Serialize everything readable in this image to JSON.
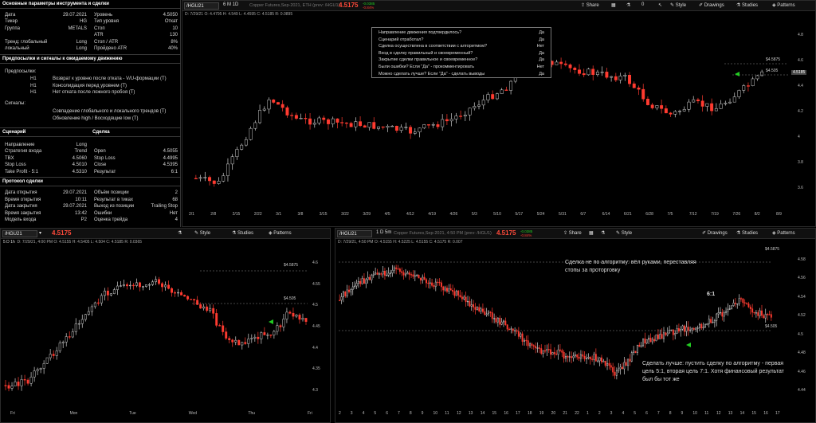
{
  "left_panel": {
    "params_title": "Основные параметры инструмента и сделки",
    "params": [
      [
        "Дата",
        "29.07.2021",
        "Уровень",
        "4.5050"
      ],
      [
        "Тикер",
        "HG",
        "Тип уровня",
        "Откат"
      ],
      [
        "Группа",
        "METALS",
        "Стоп",
        "10"
      ],
      [
        "",
        "",
        "ATR",
        "130"
      ],
      [
        "Тренд: глобальный",
        "Long",
        "Стоп / ATR",
        "8%"
      ],
      [
        "локальный",
        "Long",
        "Пройдено ATR",
        "40%"
      ]
    ],
    "signals_title": "Предпосылки и сигналы к ожидаемому движению",
    "prereq_label": "Предпосылки:",
    "prereq": [
      [
        "H1",
        "Возврат к уровню после отката - V/U-формации (T)"
      ],
      [
        "H1",
        "Консолидация перед уровнем (T)"
      ],
      [
        "H1",
        "Нет отката после ложного пробоя (T)"
      ]
    ],
    "signals_label": "Сигналы:",
    "signals": [
      "Совпадение глобального и локального трендов (T)",
      "Обновление high / Восходящие low (T)"
    ],
    "scenario_title": "Сценарий",
    "trade_title": "Сделка",
    "scenario": [
      [
        "Направление",
        "Long",
        "",
        ""
      ],
      [
        "Стратегия входа",
        "Trend",
        "Open",
        "4.5055"
      ],
      [
        "TBX",
        "4.5060",
        "Stop Loss",
        "4.4995"
      ],
      [
        "Stop Loss",
        "4.5010",
        "Close",
        "4.5395"
      ],
      [
        "Take Profit - 5:1",
        "4.5310",
        "Результат",
        "6:1"
      ]
    ],
    "protocol_title": "Протокол сделки",
    "protocol": [
      [
        "Дата открытия",
        "29.07.2021",
        "Объём позиции",
        "2"
      ],
      [
        "Время открытия",
        "10:11",
        "Результат в тиках",
        "68"
      ],
      [
        "Дата закрытия",
        "29.07.2021",
        "Выход из позиции",
        "Trailing Stop"
      ],
      [
        "Время закрытия",
        "13:42",
        "Ошибки",
        "Нет"
      ],
      [
        "Модель входа",
        "P2",
        "Оценка трейда",
        "4"
      ]
    ]
  },
  "toolbar": {
    "share": "Share",
    "style": "Style",
    "drawings": "Drawings",
    "studies": "Studies",
    "patterns": "Patterns",
    "count": "0"
  },
  "colors": {
    "up": "#d0d0d0",
    "down": "#ff3b30",
    "green": "#22cc22"
  },
  "main_chart": {
    "symbol": "/HGU21",
    "tf": "6 M 1D",
    "desc": "Copper Futures,Sep-2021, ETH (prev: /HGU1)",
    "price": "4.5175",
    "chg_up": "-0.0385",
    "chg_dn": "-0.84%",
    "ohlc": "D: 7/29/21  O: 4.4795  H: 4.549  L: 4.4595  C: 4.5185  R: 0.0895",
    "xlabels": [
      "2/1",
      "2/8",
      "2/15",
      "2/22",
      "3/1",
      "3/8",
      "3/15",
      "3/22",
      "3/29",
      "4/5",
      "4/12",
      "4/19",
      "4/26",
      "5/3",
      "5/10",
      "5/17",
      "5/24",
      "5/31",
      "6/7",
      "6/14",
      "6/21",
      "6/28",
      "7/5",
      "7/12",
      "7/19",
      "7/26",
      "8/2",
      "8/9"
    ],
    "ylabels": [
      "4.8",
      "4.6",
      "4.4",
      "4.2",
      "4",
      "3.8",
      "3.6"
    ],
    "levels": [
      "$4.5875",
      "$4.505"
    ],
    "last": "4.5185",
    "checklist": [
      [
        "Направление движения подтвердилось?",
        "Да"
      ],
      [
        "Сценарий отработал?",
        "Да"
      ],
      [
        "Сделка осуществлена в соответствии с алгоритмом?",
        "Нет"
      ],
      [
        "Вход в сделку правильный и своевременный?",
        "Да"
      ],
      [
        "Закрытие сделки правильное и своевременное?",
        "Да"
      ],
      [
        "Были ошибки? Если \"Да\" - прокомментировать",
        "Нет"
      ],
      [
        "Можно сделать лучше? Если \"Да\" - сделать выводы",
        "Да"
      ]
    ]
  },
  "h1_chart": {
    "symbol": "/HGU21",
    "tf": "5 D 1h",
    "price": "4.5175",
    "ohlc": "D: 7/29/21, 4:00 PM  O: 4.5155  H: 4.5405  L: 4.504  C: 4.5185  R: 0.0365",
    "xlabels": [
      "Fri",
      "Mon",
      "Tue",
      "Wed",
      "Thu",
      "Fri"
    ],
    "ylabels": [
      "4.6",
      "4.55",
      "4.5",
      "4.45",
      "4.4",
      "4.35",
      "4.3"
    ],
    "levels": [
      "$4.5875",
      "$4.505"
    ]
  },
  "m5_chart": {
    "symbol": "/HGU21",
    "tf": "1 D 5m",
    "desc": "Copper Futures,Sep-2021, 4:50 PM (prev: /HGU1)",
    "price": "4.5175",
    "chg_up": "-0.0385",
    "chg_dn": "-0.84%",
    "ohlc": "D: 7/29/21, 4:50 PM  O: 4.5155  H: 4.5225  L: 4.5155  C: 4.5175  R: 0.007",
    "xlabels": [
      "2",
      "3",
      "4",
      "5",
      "6",
      "7",
      "8",
      "9",
      "10",
      "11",
      "12",
      "13",
      "14",
      "15",
      "16",
      "17",
      "18",
      "19",
      "20",
      "21",
      "22",
      "1",
      "2",
      "3",
      "4",
      "5",
      "6",
      "7",
      "8",
      "9",
      "10",
      "11",
      "12",
      "13",
      "14",
      "15",
      "16",
      "17"
    ],
    "ylabels": [
      "4.58",
      "4.56",
      "4.54",
      "4.52",
      "4.5",
      "4.48",
      "4.46",
      "4.44"
    ],
    "levels": [
      "$4.5875",
      "$4.505"
    ],
    "note1": "Сделка не по алгоритму: вёл руками, переставляя стопы за проторговку",
    "ratio": "6:1",
    "note2": "Сделать лучше: пустить сделку по алгоритму - первая цель 5:1, вторая цель 7:1. Хотя финансовый результат был бы тот же"
  }
}
